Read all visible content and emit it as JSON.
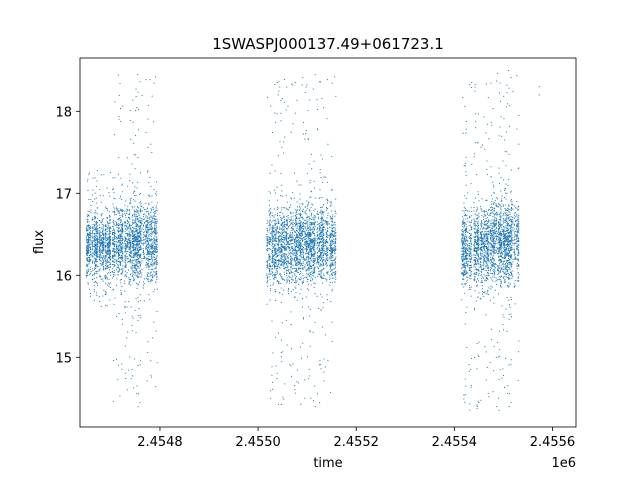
{
  "chart_data": {
    "type": "scatter",
    "title": "1SWASPJ000137.49+061723.1",
    "xlabel": "time",
    "ylabel": "flux",
    "x_offset_label": "1e6",
    "xlim": [
      2.454637,
      2.455648
    ],
    "ylim": [
      14.15,
      18.65
    ],
    "x_ticks": [
      2.4548,
      2.455,
      2.4552,
      2.4554,
      2.4556
    ],
    "x_tick_labels": [
      "2.4548",
      "2.4550",
      "2.4552",
      "2.4554",
      "2.4556"
    ],
    "y_ticks": [
      15,
      16,
      17,
      18
    ],
    "y_tick_labels": [
      "15",
      "16",
      "17",
      "18"
    ],
    "grid": false,
    "marker_color": "#1f77b4",
    "clusters": [
      {
        "x_start": 2.45465,
        "x_end": 2.454705,
        "median": 16.35,
        "spread": 0.33,
        "ymin": 15.6,
        "ymax": 17.3
      },
      {
        "x_start": 2.454705,
        "x_end": 2.454795,
        "median": 16.4,
        "spread": 0.4,
        "ymin": 14.35,
        "ymax": 18.45
      },
      {
        "x_start": 2.455018,
        "x_end": 2.45508,
        "median": 16.35,
        "spread": 0.4,
        "ymin": 14.4,
        "ymax": 18.4
      },
      {
        "x_start": 2.45508,
        "x_end": 2.45516,
        "median": 16.38,
        "spread": 0.38,
        "ymin": 14.35,
        "ymax": 18.45
      },
      {
        "x_start": 2.455415,
        "x_end": 2.45547,
        "median": 16.35,
        "spread": 0.38,
        "ymin": 14.35,
        "ymax": 18.4
      },
      {
        "x_start": 2.45547,
        "x_end": 2.455532,
        "median": 16.4,
        "spread": 0.42,
        "ymin": 14.35,
        "ymax": 18.5
      }
    ],
    "isolated_points": [
      {
        "x": 2.455573,
        "y": 18.3
      },
      {
        "x": 2.455573,
        "y": 18.2
      }
    ]
  }
}
